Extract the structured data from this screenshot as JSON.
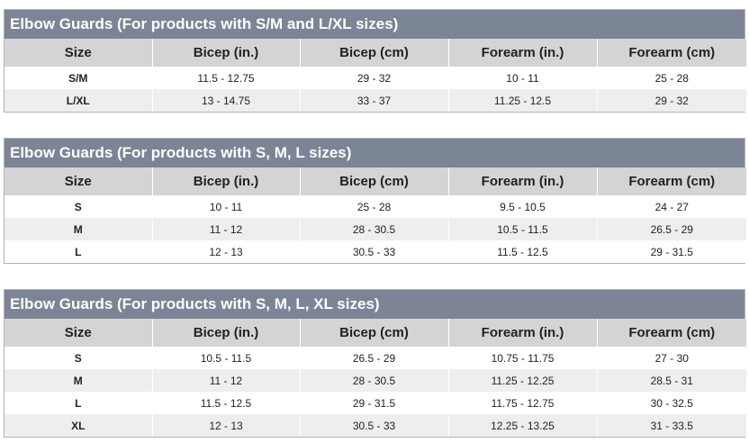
{
  "columns": [
    "Size",
    "Bicep (in.)",
    "Bicep (cm)",
    "Forearm (in.)",
    "Forearm (cm)"
  ],
  "tables": [
    {
      "title": "Elbow Guards (For products with S/M and L/XL sizes)",
      "rows": [
        [
          "S/M",
          "11.5 - 12.75",
          "29 - 32",
          "10 - 11",
          "25 - 28"
        ],
        [
          "L/XL",
          "13 - 14.75",
          "33 - 37",
          "11.25 - 12.5",
          "29 - 32"
        ]
      ]
    },
    {
      "title": "Elbow Guards (For products with S, M, L sizes)",
      "rows": [
        [
          "S",
          "10 - 11",
          "25 - 28",
          "9.5 - 10.5",
          "24 - 27"
        ],
        [
          "M",
          "11 - 12",
          "28 - 30.5",
          "10.5 - 11.5",
          "26.5 - 29"
        ],
        [
          "L",
          "12 - 13",
          "30.5 - 33",
          "11.5 - 12.5",
          "29 - 31.5"
        ]
      ]
    },
    {
      "title": "Elbow Guards (For products with S, M, L, XL sizes)",
      "rows": [
        [
          "S",
          "10.5 - 11.5",
          "26.5 - 29",
          "10.75 - 11.75",
          "27 - 30"
        ],
        [
          "M",
          "11 - 12",
          "28 - 30.5",
          "11.25 - 12.25",
          "28.5 - 31"
        ],
        [
          "L",
          "11.5 - 12.5",
          "29 - 31.5",
          "11.75 - 12.75",
          "30 - 32.5"
        ],
        [
          "XL",
          "12 - 13",
          "30.5 - 33",
          "12.25 - 13.25",
          "31 - 33.5"
        ]
      ]
    }
  ]
}
